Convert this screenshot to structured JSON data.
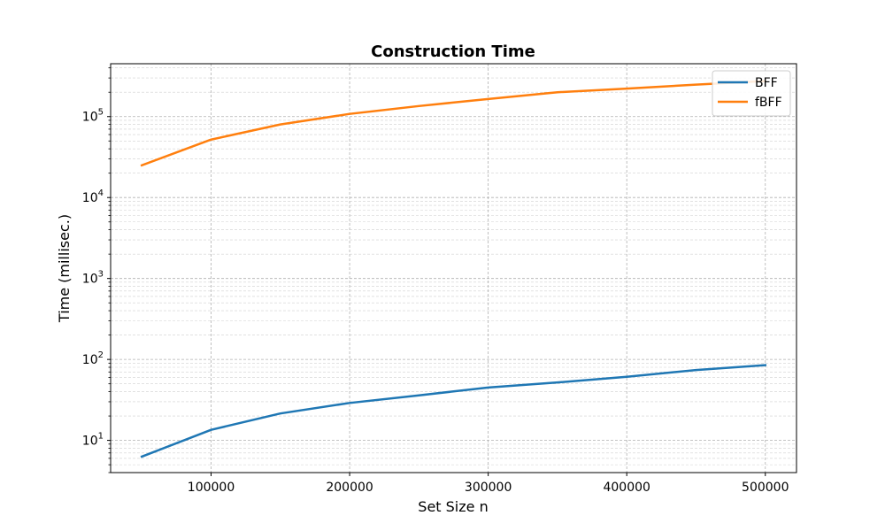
{
  "chart_data": {
    "type": "line",
    "title": "Construction Time",
    "xlabel": "Set Size n",
    "ylabel": "Time (millisec.)",
    "yscale": "log",
    "xlim": [
      27500,
      522500
    ],
    "ylim": [
      4,
      450000
    ],
    "grid": true,
    "legend_position": "top-right",
    "x": [
      50000,
      100000,
      150000,
      200000,
      250000,
      300000,
      350000,
      400000,
      450000,
      500000
    ],
    "x_ticks": [
      100000,
      200000,
      300000,
      400000,
      500000
    ],
    "x_tick_labels": [
      "100000",
      "200000",
      "300000",
      "400000",
      "500000"
    ],
    "y_ticks": [
      10,
      100,
      1000,
      10000,
      100000
    ],
    "y_tick_base": "10",
    "y_tick_exponents": [
      "1",
      "2",
      "3",
      "4",
      "5"
    ],
    "series": [
      {
        "name": "BFF",
        "color": "#1f77b4",
        "values": [
          6.3,
          13.5,
          21.5,
          29,
          36,
          45,
          52,
          61,
          74,
          85
        ]
      },
      {
        "name": "fBFF",
        "color": "#ff7f0e",
        "values": [
          25000,
          52000,
          80000,
          108000,
          135000,
          165000,
          200000,
          222000,
          248000,
          275000
        ]
      }
    ]
  }
}
